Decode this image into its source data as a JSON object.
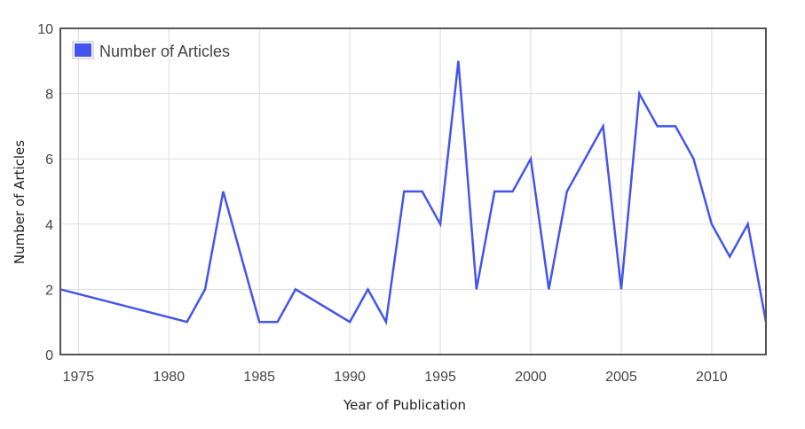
{
  "chart_data": {
    "type": "line",
    "title": "",
    "xlabel": "Year of Publication",
    "ylabel": "Number of Articles",
    "xlim": [
      1974,
      2013
    ],
    "ylim": [
      0,
      10
    ],
    "xticks": [
      1975,
      1980,
      1985,
      1990,
      1995,
      2000,
      2005,
      2010
    ],
    "yticks": [
      0,
      2,
      4,
      6,
      8,
      10
    ],
    "grid": true,
    "legend_position": "top-left",
    "series": [
      {
        "name": "Number of Articles",
        "color": "#4455ee",
        "x": [
          1974,
          1981,
          1982,
          1983,
          1985,
          1986,
          1987,
          1990,
          1991,
          1992,
          1993,
          1994,
          1995,
          1996,
          1997,
          1998,
          1999,
          2000,
          2001,
          2002,
          2004,
          2005,
          2006,
          2007,
          2008,
          2009,
          2010,
          2011,
          2012,
          2013
        ],
        "y": [
          2,
          1,
          2,
          5,
          1,
          1,
          2,
          1,
          2,
          1,
          5,
          5,
          4,
          9,
          2,
          5,
          5,
          6,
          2,
          5,
          7,
          2,
          8,
          7,
          7,
          6,
          4,
          3,
          4,
          1
        ]
      }
    ]
  }
}
